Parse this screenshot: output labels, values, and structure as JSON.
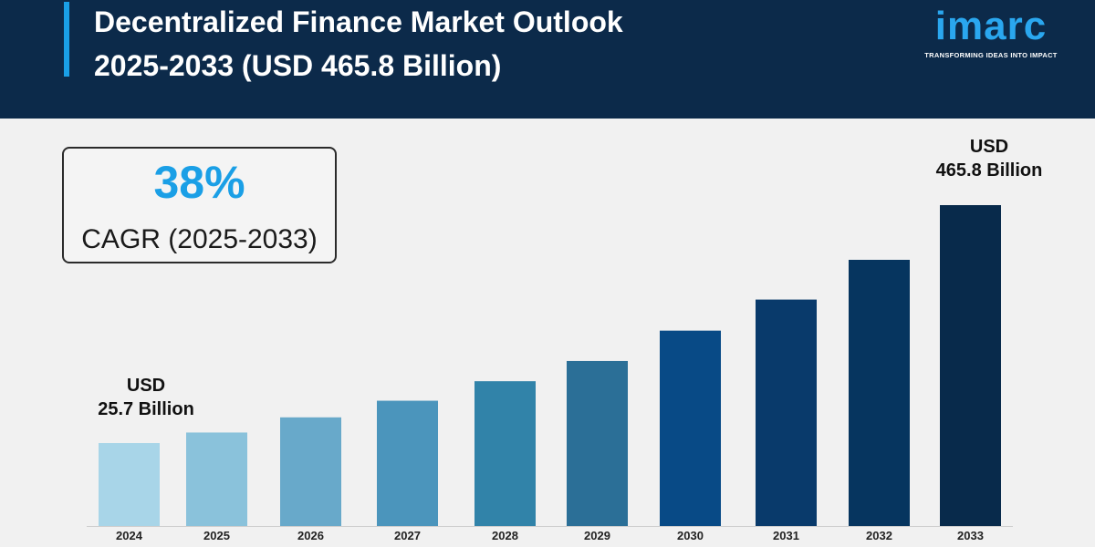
{
  "header": {
    "title_line1": "Decentralized Finance Market Outlook",
    "title_line2": "2025-2033 (USD 465.8 Billion)"
  },
  "logo": {
    "wordmark": "imarc",
    "tagline": "TRANSFORMING IDEAS INTO IMPACT"
  },
  "cagr": {
    "value": "38%",
    "label": "CAGR (2025-2033)"
  },
  "annotations": {
    "start": {
      "line1": "USD",
      "line2": "25.7 Billion"
    },
    "end": {
      "line1": "USD",
      "line2": "465.8 Billion"
    }
  },
  "colors": {
    "header_bg": "#0c2a4a",
    "accent": "#1a9fe6",
    "page_bg": "#f1f1f1",
    "bars": [
      "#a8d5e8",
      "#8ac2db",
      "#68a9ca",
      "#4b95bc",
      "#3183a9",
      "#2b6f97",
      "#084a86",
      "#093a6b",
      "#06355f",
      "#082a4b"
    ]
  },
  "chart_data": {
    "type": "bar",
    "categories": [
      "2024",
      "2025",
      "2026",
      "2027",
      "2028",
      "2029",
      "2030",
      "2031",
      "2032",
      "2033"
    ],
    "values": [
      25.7,
      33,
      43.5,
      55,
      68.5,
      82.5,
      103.5,
      125,
      152.5,
      465.8
    ],
    "title": "Decentralized Finance Market Outlook 2025-2033 (USD 465.8 Billion)",
    "xlabel": "",
    "ylabel": "",
    "grid": false,
    "legend": "none",
    "axis_scale": "non-linear (illustrative)"
  }
}
